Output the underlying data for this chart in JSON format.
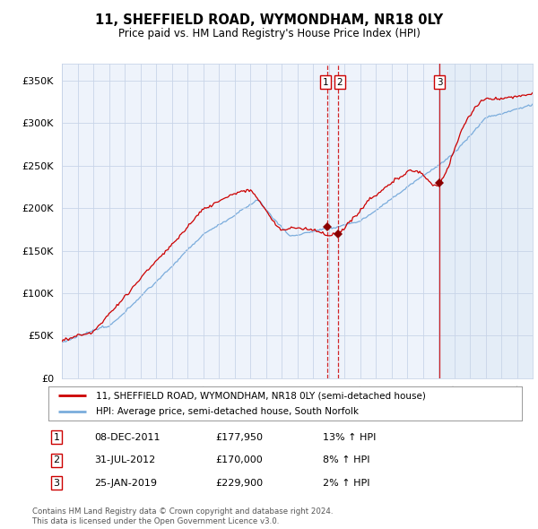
{
  "title": "11, SHEFFIELD ROAD, WYMONDHAM, NR18 0LY",
  "subtitle": "Price paid vs. HM Land Registry's House Price Index (HPI)",
  "ylim": [
    0,
    370000
  ],
  "yticks": [
    0,
    50000,
    100000,
    150000,
    200000,
    250000,
    300000,
    350000
  ],
  "sale_prices": [
    177950,
    170000,
    229900
  ],
  "sale_labels": [
    "1",
    "2",
    "3"
  ],
  "sale_decimal": [
    2011.92,
    2012.58,
    2019.07
  ],
  "transaction_info": [
    {
      "num": "1",
      "date": "08-DEC-2011",
      "price": "£177,950",
      "hpi": "13% ↑ HPI"
    },
    {
      "num": "2",
      "date": "31-JUL-2012",
      "price": "£170,000",
      "hpi": "8% ↑ HPI"
    },
    {
      "num": "3",
      "date": "25-JAN-2019",
      "price": "£229,900",
      "hpi": "2% ↑ HPI"
    }
  ],
  "legend_line1": "11, SHEFFIELD ROAD, WYMONDHAM, NR18 0LY (semi-detached house)",
  "legend_line2": "HPI: Average price, semi-detached house, South Norfolk",
  "footer1": "Contains HM Land Registry data © Crown copyright and database right 2024.",
  "footer2": "This data is licensed under the Open Government Licence v3.0.",
  "price_line_color": "#cc0000",
  "hpi_line_color": "#7aacdc",
  "vline_color": "#cc0000",
  "background_color": "#ffffff",
  "plot_bg_color": "#eef3fb",
  "grid_color": "#c8d4e8",
  "box_color": "#cc0000",
  "marker_color": "#8b0000"
}
